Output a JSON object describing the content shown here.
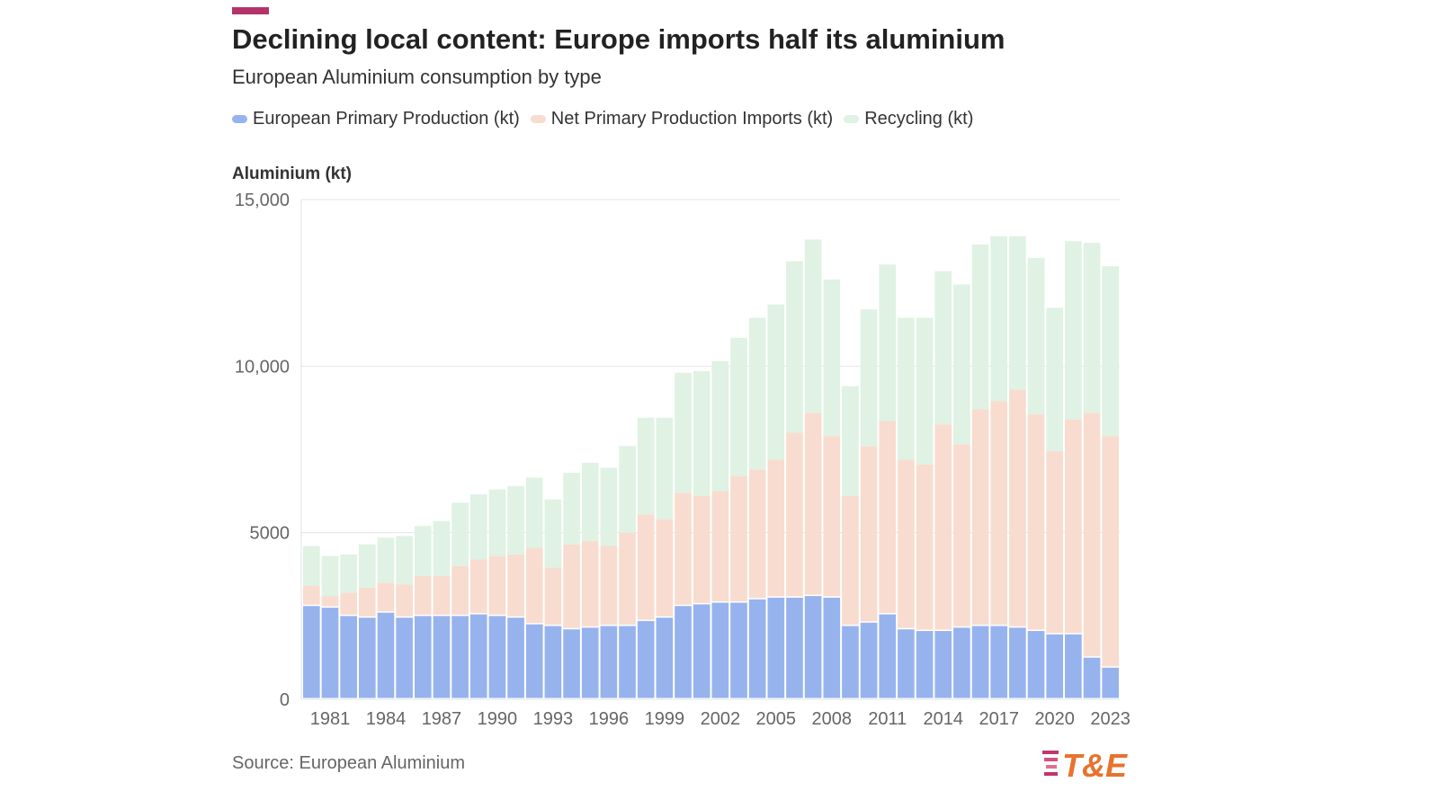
{
  "chart_data": {
    "type": "bar",
    "stacked": true,
    "title": "Declining local content: Europe imports half its aluminium",
    "subtitle": "European Aluminium consumption by type",
    "ylabel": "Aluminium (kt)",
    "xlabel": "",
    "ylim": [
      0,
      15000
    ],
    "yticks": [
      "0",
      "5000",
      "10,000",
      "15,000"
    ],
    "ytick_values": [
      0,
      5000,
      10000,
      15000
    ],
    "xtick_labels": [
      "1981",
      "1984",
      "1987",
      "1990",
      "1993",
      "1996",
      "1999",
      "2002",
      "2005",
      "2008",
      "2011",
      "2014",
      "2017",
      "2020",
      "2023"
    ],
    "categories": [
      "1980",
      "1981",
      "1982",
      "1983",
      "1984",
      "1985",
      "1986",
      "1987",
      "1988",
      "1989",
      "1990",
      "1991",
      "1992",
      "1993",
      "1994",
      "1995",
      "1996",
      "1997",
      "1998",
      "1999",
      "2000",
      "2001",
      "2002",
      "2003",
      "2004",
      "2005",
      "2006",
      "2007",
      "2008",
      "2009",
      "2010",
      "2011",
      "2012",
      "2013",
      "2014",
      "2015",
      "2016",
      "2017",
      "2018",
      "2019",
      "2020",
      "2021",
      "2022",
      "2023"
    ],
    "series": [
      {
        "name": "European Primary Production (kt)",
        "color": "#97b3ee",
        "values": [
          2800,
          2750,
          2500,
          2450,
          2600,
          2450,
          2500,
          2500,
          2500,
          2550,
          2500,
          2450,
          2250,
          2200,
          2100,
          2150,
          2200,
          2200,
          2350,
          2450,
          2800,
          2850,
          2900,
          2900,
          3000,
          3050,
          3050,
          3100,
          3050,
          2200,
          2300,
          2550,
          2100,
          2050,
          2050,
          2150,
          2200,
          2200,
          2150,
          2050,
          1950,
          1950,
          1250,
          950
        ]
      },
      {
        "name": "Net Primary Production Imports (kt)",
        "color": "#f8dccf",
        "values": [
          600,
          350,
          700,
          900,
          900,
          1000,
          1200,
          1200,
          1500,
          1650,
          1800,
          1900,
          2300,
          1750,
          2550,
          2600,
          2400,
          2800,
          3200,
          2950,
          3400,
          3250,
          3350,
          3800,
          3900,
          4150,
          4950,
          5500,
          4850,
          3900,
          5300,
          5800,
          5100,
          5000,
          6200,
          5500,
          6500,
          6750,
          7150,
          6500,
          5500,
          6450,
          7350,
          6950
        ]
      },
      {
        "name": "Recycling (kt)",
        "color": "#dff2e3",
        "values": [
          1200,
          1200,
          1150,
          1300,
          1350,
          1450,
          1500,
          1650,
          1900,
          1950,
          2000,
          2050,
          2100,
          2050,
          2150,
          2350,
          2350,
          2600,
          2900,
          3050,
          3600,
          3750,
          3900,
          4150,
          4550,
          4650,
          5150,
          5200,
          4700,
          3300,
          4100,
          4700,
          4250,
          4400,
          4600,
          4800,
          4950,
          4950,
          4600,
          4700,
          4300,
          5350,
          5100,
          5100
        ]
      }
    ],
    "source": "Source: European Aluminium"
  },
  "logo": {
    "text": "T&E",
    "color": "#e8722e",
    "accent_color": "#c2356d"
  }
}
